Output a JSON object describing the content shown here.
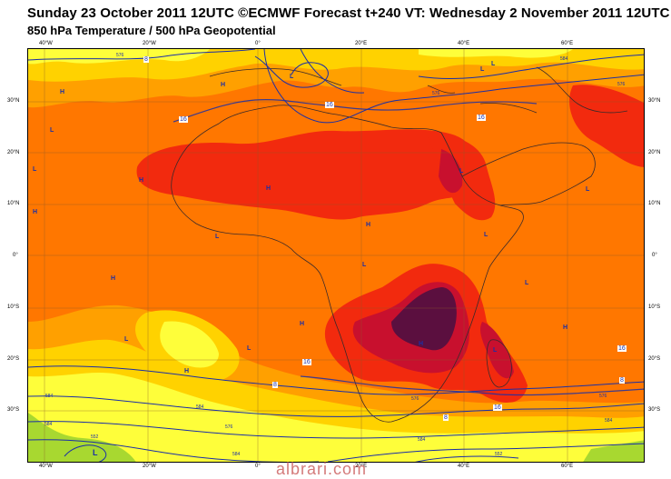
{
  "header": {
    "title": "Sunday 23 October 2011 12UTC ©ECMWF Forecast t+240 VT: Wednesday 2 November 2011 12UTC",
    "subtitle": "850 hPa Temperature / 500 hPa Geopotential"
  },
  "map": {
    "top_lon_ticks": [
      "40°W",
      "20°W",
      "0°",
      "20°E",
      "40°E",
      "60°E"
    ],
    "bottom_lon_ticks": [
      "40°W",
      "20°W",
      "0°",
      "20°E",
      "40°E",
      "60°E"
    ],
    "left_lat_ticks": [
      "30°N",
      "20°N",
      "10°N",
      "0°",
      "10°S",
      "20°S",
      "30°S"
    ],
    "right_lat_ticks": [
      "30°N",
      "20°N",
      "10°N",
      "0°",
      "10°S",
      "20°S",
      "30°S"
    ],
    "pressure_centers": [
      {
        "type": "H",
        "id": "h1"
      },
      {
        "type": "L",
        "id": "l1"
      },
      {
        "type": "H",
        "id": "h2"
      },
      {
        "type": "L",
        "id": "l2"
      },
      {
        "type": "H",
        "id": "h3"
      },
      {
        "type": "H",
        "id": "h4"
      },
      {
        "type": "L",
        "id": "l3"
      },
      {
        "type": "H",
        "id": "h5"
      },
      {
        "type": "L",
        "id": "l4"
      },
      {
        "type": "H",
        "id": "h6"
      },
      {
        "type": "L",
        "id": "l5"
      },
      {
        "type": "H",
        "id": "h7"
      },
      {
        "type": "L",
        "id": "l6"
      },
      {
        "type": "H",
        "id": "h8"
      },
      {
        "type": "H",
        "id": "h9"
      },
      {
        "type": "L",
        "id": "l7"
      },
      {
        "type": "L",
        "id": "l8"
      },
      {
        "type": "H",
        "id": "h10"
      },
      {
        "type": "L",
        "id": "l9"
      },
      {
        "type": "L",
        "id": "l10"
      },
      {
        "type": "L",
        "id": "l11"
      },
      {
        "type": "H",
        "id": "h11"
      },
      {
        "type": "L",
        "id": "l12"
      },
      {
        "type": "L",
        "id": "l13"
      },
      {
        "type": "L",
        "id": "l14"
      },
      {
        "type": "L",
        "id": "l15"
      }
    ],
    "temp_labels": [
      "8",
      "16",
      "16",
      "16",
      "16",
      "8",
      "16",
      "8",
      "8",
      "16"
    ],
    "geo_labels": [
      "576",
      "576",
      "584",
      "576",
      "576",
      "584",
      "584",
      "576",
      "576",
      "584",
      "584",
      "584",
      "584",
      "552",
      "552"
    ]
  },
  "watermark": "albrari.com",
  "colors": {
    "yellow_light": "#fefe3a",
    "yellow": "#ffd200",
    "orange_light": "#ffa000",
    "orange": "#ff7700",
    "red": "#f22a0e",
    "red_dark": "#c8102e",
    "purple": "#5b0f3f",
    "green": "#a8d830",
    "contour_blue": "#1b2fa6",
    "coast": "#3a2a2a"
  }
}
